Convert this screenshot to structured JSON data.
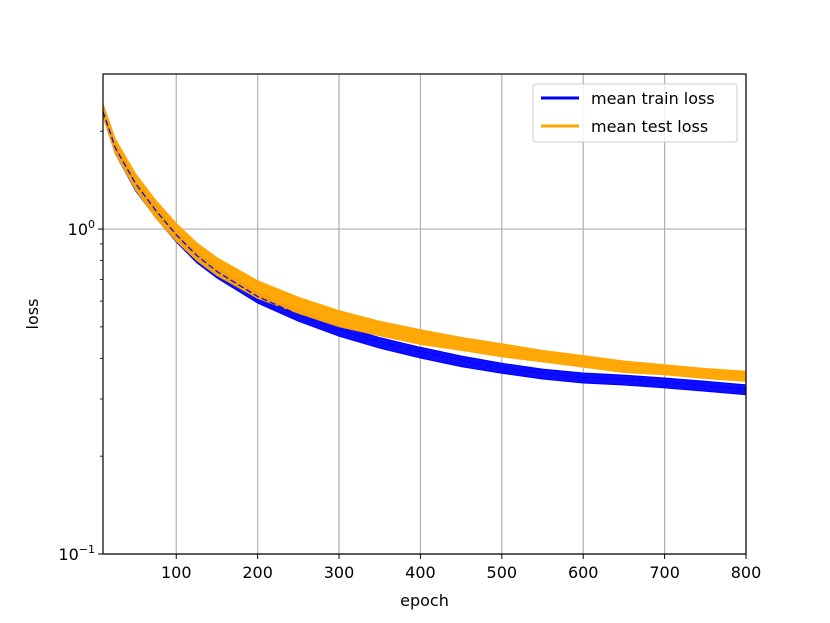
{
  "chart_data": {
    "type": "line",
    "title": "",
    "xlabel": "epoch",
    "ylabel": "loss",
    "yscale": "log",
    "xlim": [
      10,
      800
    ],
    "ylim": [
      0.1,
      3.0
    ],
    "grid": true,
    "legend_position": "top-right",
    "x_ticks": [
      100,
      200,
      300,
      400,
      500,
      600,
      700,
      800
    ],
    "y_ticks": [
      {
        "value": 1.0,
        "base": "10",
        "exp": "0"
      },
      {
        "value": 0.1,
        "base": "10",
        "exp": "−1"
      }
    ],
    "x": [
      10,
      25,
      50,
      75,
      100,
      125,
      150,
      200,
      250,
      300,
      350,
      400,
      450,
      500,
      550,
      600,
      650,
      700,
      750,
      800
    ],
    "series": [
      {
        "name": "mean train loss",
        "color": "#0000ff",
        "values": [
          2.3,
          1.78,
          1.38,
          1.14,
          0.96,
          0.83,
          0.74,
          0.62,
          0.545,
          0.49,
          0.45,
          0.42,
          0.395,
          0.375,
          0.36,
          0.35,
          0.345,
          0.338,
          0.33,
          0.322
        ],
        "spread_low": [
          0.97,
          0.96,
          0.95,
          0.95,
          0.95,
          0.95,
          0.955,
          0.955,
          0.955,
          0.955,
          0.955,
          0.955,
          0.955,
          0.96,
          0.96,
          0.96,
          0.96,
          0.96,
          0.96,
          0.96
        ],
        "spread_high": [
          1.02,
          1.03,
          1.03,
          1.03,
          1.03,
          1.03,
          1.03,
          1.03,
          1.03,
          1.03,
          1.03,
          1.03,
          1.03,
          1.03,
          1.03,
          1.03,
          1.03,
          1.03,
          1.03,
          1.03
        ]
      },
      {
        "name": "mean test loss",
        "color": "#ffa500",
        "values": [
          2.38,
          1.86,
          1.45,
          1.2,
          1.02,
          0.89,
          0.8,
          0.68,
          0.605,
          0.55,
          0.51,
          0.48,
          0.455,
          0.435,
          0.415,
          0.4,
          0.385,
          0.375,
          0.365,
          0.358
        ],
        "spread_low": [
          0.93,
          0.92,
          0.91,
          0.9,
          0.9,
          0.9,
          0.9,
          0.9,
          0.91,
          0.91,
          0.92,
          0.92,
          0.93,
          0.93,
          0.94,
          0.94,
          0.94,
          0.95,
          0.95,
          0.95
        ],
        "spread_high": [
          1.02,
          1.02,
          1.02,
          1.02,
          1.02,
          1.02,
          1.02,
          1.02,
          1.02,
          1.02,
          1.02,
          1.02,
          1.02,
          1.02,
          1.02,
          1.02,
          1.02,
          1.02,
          1.02,
          1.02
        ]
      }
    ]
  }
}
